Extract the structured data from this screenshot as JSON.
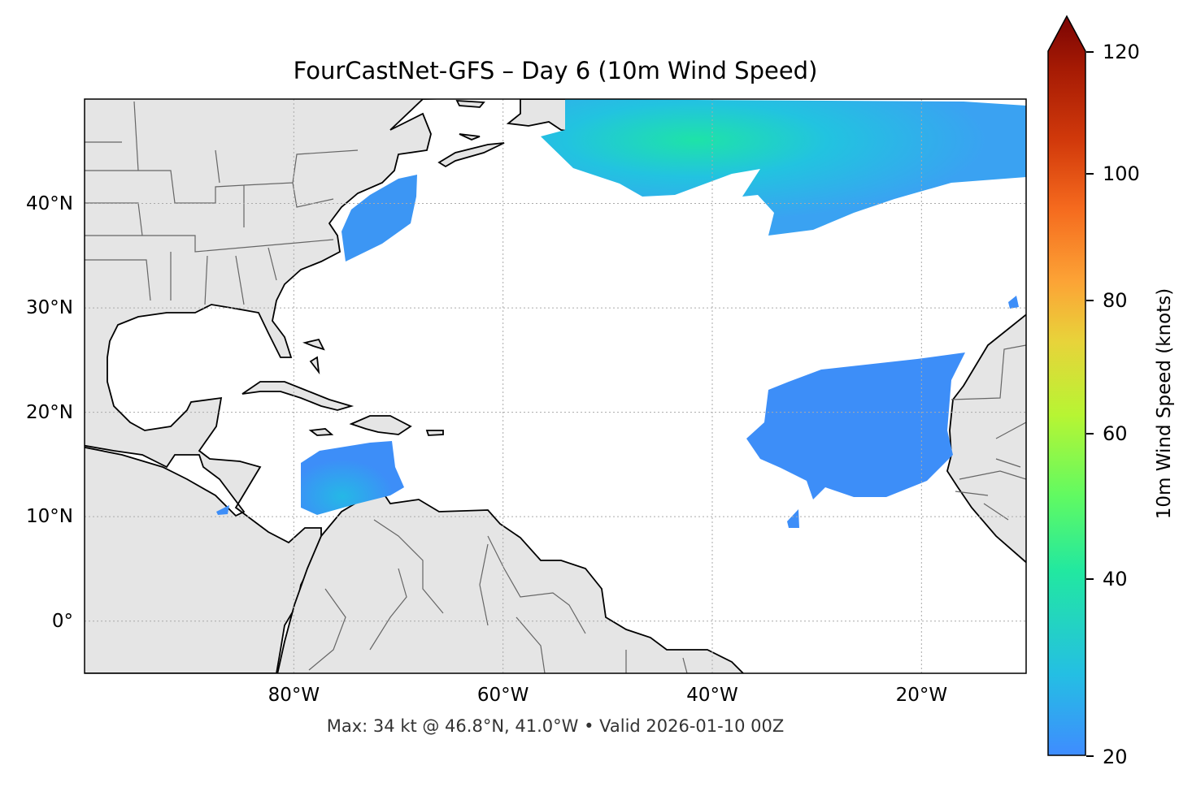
{
  "title": "FourCastNet-GFS – Day 6 (10m Wind Speed)",
  "footer": "Max: 34 kt @ 46.8°N, 41.0°W • Valid 2026-01-10 00Z",
  "map": {
    "projection": "PlateCarree",
    "extent_lon": [
      -100,
      -10
    ],
    "extent_lat": [
      -5,
      50
    ],
    "land_color": "#e5e5e5",
    "ocean_color": "#ffffff",
    "gridlines": "dotted",
    "x_ticks": [
      {
        "value": -80,
        "label": "80°W"
      },
      {
        "value": -60,
        "label": "60°W"
      },
      {
        "value": -40,
        "label": "40°W"
      },
      {
        "value": -20,
        "label": "20°W"
      }
    ],
    "y_ticks": [
      {
        "value": 40,
        "label": "40°N"
      },
      {
        "value": 30,
        "label": "30°N"
      },
      {
        "value": 20,
        "label": "20°N"
      },
      {
        "value": 10,
        "label": "10°N"
      },
      {
        "value": 0,
        "label": "0°"
      }
    ]
  },
  "colorbar": {
    "label": "10m Wind Speed (knots)",
    "colormap": "turbo",
    "range": [
      20,
      120
    ],
    "extend": "max",
    "ticks": [
      "20",
      "40",
      "60",
      "80",
      "100",
      "120"
    ]
  },
  "wind_colors": {
    "low": "#3d8ef8",
    "mid": "#22c3e0",
    "max": "#1ee3a8"
  }
}
